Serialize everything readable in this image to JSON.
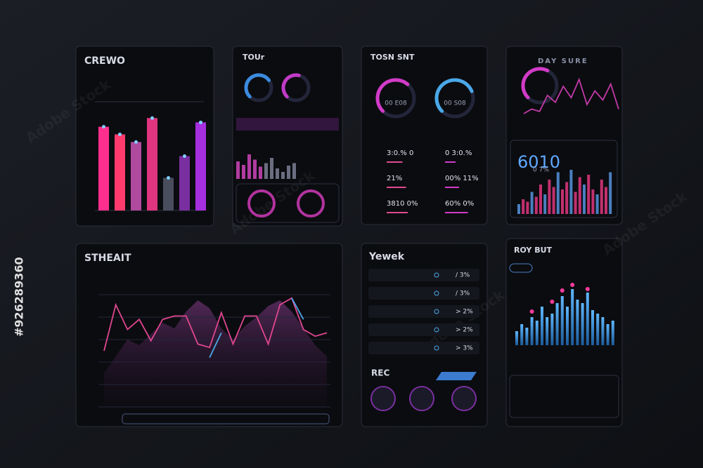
{
  "watermark": {
    "id": "#926289360",
    "brand": "Adobe Stock"
  },
  "panels": {
    "crewo": {
      "title": "CREWO",
      "bars": [
        77,
        70,
        63,
        85,
        30,
        50,
        81
      ]
    },
    "tour": {
      "title": "TOUr",
      "gauges": [
        70,
        55
      ],
      "bars": [
        50,
        40,
        70,
        55,
        35,
        45,
        60,
        30,
        20,
        38,
        45
      ]
    },
    "tosn": {
      "title": "TOSN SNT",
      "gauges": [
        65,
        75
      ],
      "gauge_labels": [
        "00 E08",
        "00 S08"
      ],
      "rows_left": [
        "3:0.% 0",
        "21%",
        "3810 0%"
      ],
      "rows_right": [
        "0 3:0.%",
        "00% 11%",
        "60% 0%"
      ],
      "progress_left": [
        45,
        55,
        60
      ],
      "progress_right": [
        30,
        40,
        65
      ]
    },
    "daysure": {
      "title": "DAY SURE",
      "gauge": 60,
      "big": "6010",
      "sub": "0 7%",
      "line": [
        20,
        30,
        25,
        60,
        45,
        80,
        55,
        95,
        40,
        70,
        50,
        85,
        30
      ],
      "bars": [
        20,
        30,
        25,
        45,
        35,
        60,
        40,
        70,
        55,
        85,
        50,
        65,
        90,
        45,
        75,
        60,
        80,
        50,
        40,
        70,
        55,
        85
      ]
    },
    "stheait": {
      "title": "STHEAIT",
      "area": [
        30,
        45,
        60,
        55,
        65,
        75,
        70,
        85,
        95,
        88,
        70,
        60,
        72,
        80,
        90,
        95,
        85,
        70,
        55,
        45
      ],
      "series": [
        {
          "color": "#e0468f",
          "values": [
            50,
            91,
            69,
            78,
            59,
            78,
            81,
            81,
            56,
            53,
            84,
            56,
            81,
            81,
            56,
            91,
            97,
            69,
            63,
            66
          ]
        },
        {
          "color": "#4aa8e8",
          "values": [
            null,
            null,
            null,
            null,
            null,
            null,
            null,
            null,
            null,
            44,
            66,
            null,
            null,
            null,
            null,
            null,
            97,
            78,
            null,
            null
          ]
        }
      ]
    },
    "yewek": {
      "title": "Yewek",
      "rows": [
        "/ 3%",
        "/ 3%",
        "> 2%",
        "> 2%",
        "> 3%"
      ],
      "sub_title": "REC"
    },
    "roybut": {
      "title": "ROY BUT",
      "bars": [
        20,
        30,
        25,
        40,
        35,
        55,
        40,
        45,
        60,
        70,
        55,
        80,
        65,
        60,
        75,
        50,
        45,
        40,
        30,
        35
      ],
      "dots": [
        null,
        null,
        null,
        48,
        null,
        null,
        null,
        62,
        null,
        78,
        null,
        86,
        null,
        null,
        80,
        null,
        null,
        null,
        null,
        null
      ]
    }
  }
}
